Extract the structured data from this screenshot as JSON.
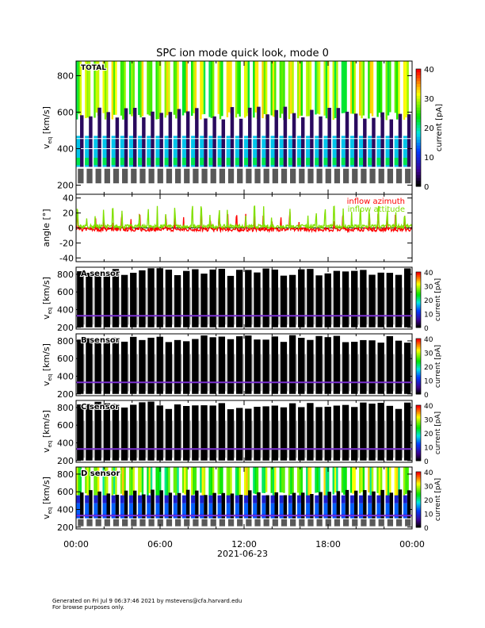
{
  "chart_data": {
    "type": "heatmap",
    "title": "SPC ion mode quick look, mode 0",
    "xlabel": "2021-06-23",
    "x_tick_labels": [
      "00:00",
      "06:00",
      "12:00",
      "18:00",
      "00:00"
    ],
    "x_range_hours": [
      0,
      24
    ],
    "panels": [
      {
        "id": "total",
        "label": "TOTAL",
        "ylabel": "v",
        "ylabel_sub": "eq",
        "ylabel_unit": "[km/s]",
        "ylim": [
          150,
          880
        ],
        "yticks": [
          200,
          400,
          600,
          800
        ],
        "colorbar": {
          "label": "current [pA]",
          "range": [
            0,
            40
          ],
          "ticks": [
            0,
            10,
            20,
            30,
            40
          ]
        }
      },
      {
        "id": "angle",
        "ylabel": "angle [°]",
        "ylim": [
          -45,
          45
        ],
        "yticks": [
          -40,
          -20,
          0,
          20,
          40
        ],
        "series": [
          {
            "name": "inflow azimuth",
            "color": "#ff0000",
            "baseline": -2
          },
          {
            "name": "inflow attitude",
            "color": "#80e000",
            "baseline": 2
          }
        ]
      },
      {
        "id": "a",
        "label": "A sensor",
        "ylabel": "v",
        "ylabel_sub": "eq",
        "ylabel_unit": "[km/s]",
        "ylim": [
          180,
          880
        ],
        "yticks": [
          200,
          400,
          600,
          800
        ],
        "colorbar": {
          "label": "current [pA]",
          "range": [
            0,
            40
          ],
          "ticks": [
            0,
            10,
            20,
            30,
            40
          ]
        }
      },
      {
        "id": "b",
        "label": "B sensor",
        "ylabel": "v",
        "ylabel_sub": "eq",
        "ylabel_unit": "[km/s]",
        "ylim": [
          180,
          880
        ],
        "yticks": [
          200,
          400,
          600,
          800
        ],
        "colorbar": {
          "label": "current [pA]",
          "range": [
            0,
            40
          ],
          "ticks": [
            0,
            10,
            20,
            30,
            40
          ]
        }
      },
      {
        "id": "c",
        "label": "C sensor",
        "ylabel": "v",
        "ylabel_sub": "eq",
        "ylabel_unit": "[km/s]",
        "ylim": [
          180,
          880
        ],
        "yticks": [
          200,
          400,
          600,
          800
        ],
        "colorbar": {
          "label": "current [pA]",
          "range": [
            0,
            40
          ],
          "ticks": [
            0,
            10,
            20,
            30,
            40
          ]
        }
      },
      {
        "id": "d",
        "label": "D sensor",
        "ylabel": "v",
        "ylabel_sub": "eq",
        "ylabel_unit": "[km/s]",
        "ylim": [
          180,
          880
        ],
        "yticks": [
          200,
          400,
          600,
          800
        ],
        "colorbar": {
          "label": "current [pA]",
          "range": [
            0,
            40
          ],
          "ticks": [
            0,
            10,
            20,
            30,
            40
          ]
        }
      }
    ],
    "proton_speed_kms_approx": 330,
    "burst_count_approx": 38
  },
  "footer": {
    "line1": "Generated on Fri Jul  9 06:37:46 2021 by mstevens@cfa.harvard.edu",
    "line2": "For browse purposes only."
  }
}
